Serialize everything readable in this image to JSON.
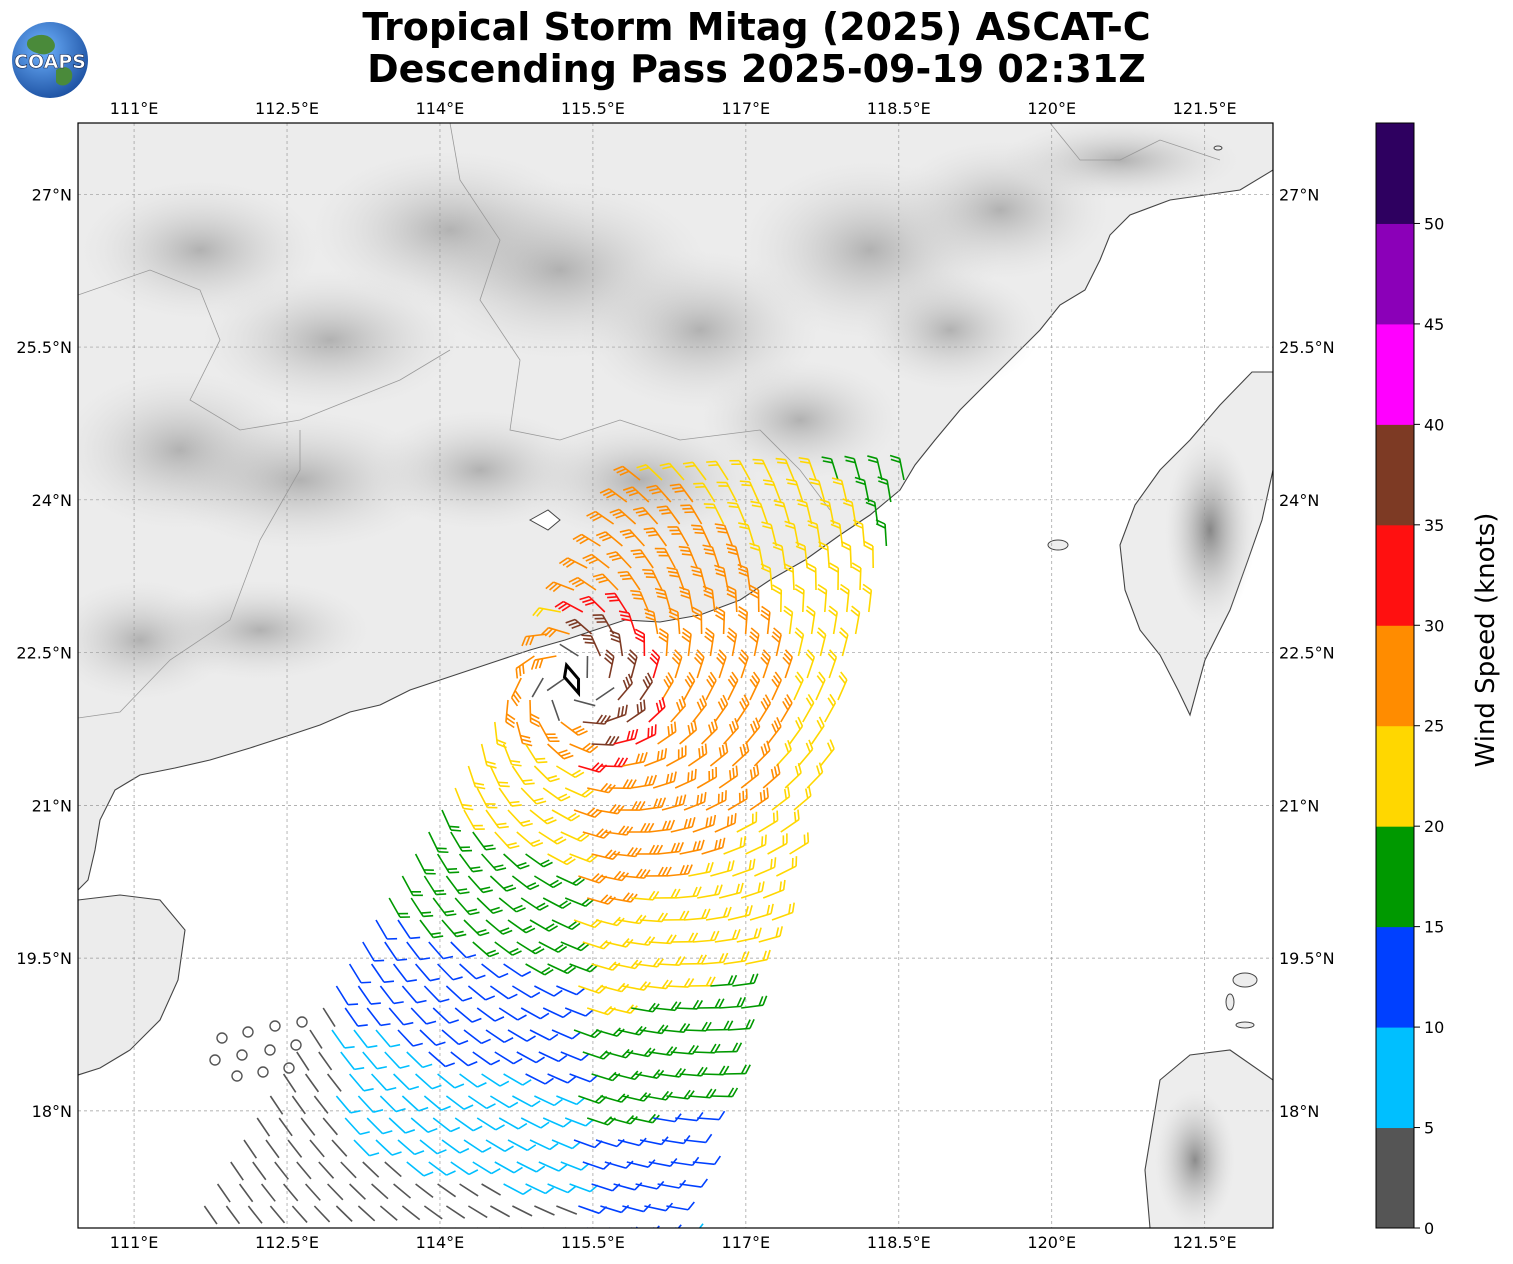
{
  "title": {
    "line1": "Tropical Storm Mitag (2025) ASCAT-C",
    "line2": "Descending Pass 2025-09-19 02:31Z"
  },
  "logo_text": "COAPS",
  "map": {
    "lon_ticks": [
      "111°E",
      "112.5°E",
      "114°E",
      "115.5°E",
      "117°E",
      "118.5°E",
      "120°E",
      "121.5°E"
    ],
    "lat_ticks": [
      "27°N",
      "25.5°N",
      "24°N",
      "22.5°N",
      "21°N",
      "19.5°N",
      "18°N"
    ],
    "storm_center": {
      "lon": 115.3,
      "lat": 22.2
    },
    "gridlines": true
  },
  "colorbar": {
    "label": "Wind Speed (knots)",
    "ticks": [
      "0",
      "5",
      "10",
      "15",
      "20",
      "25",
      "30",
      "35",
      "40",
      "45",
      "50"
    ],
    "colors": [
      "#555555",
      "#00bfff",
      "#0040ff",
      "#009900",
      "#ffd700",
      "#ff8c00",
      "#ff1010",
      "#7d3a24",
      "#ff00ff",
      "#8b00b8",
      "#2e0060"
    ]
  }
}
